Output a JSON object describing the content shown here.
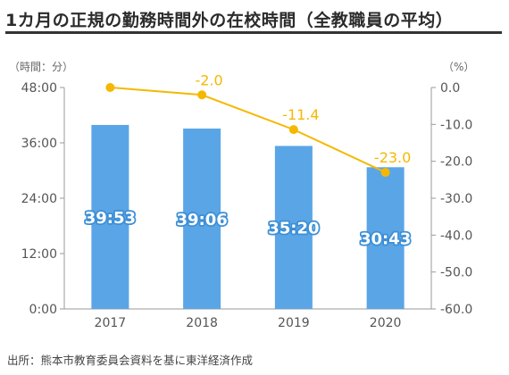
{
  "title": "1カ月の正規の勤務時間外の在校時間（全教職員の平均）",
  "source": "出所：熊本市教育委員会資料を基に東洋経済作成",
  "chart_data": {
    "type": "bar",
    "categories": [
      "2017",
      "2018",
      "2019",
      "2020"
    ],
    "left_axis": {
      "unit_label": "（時間：分）",
      "ticks": [
        "0:00",
        "12:00",
        "24:00",
        "36:00",
        "48:00"
      ],
      "range_minutes": [
        0,
        2880
      ]
    },
    "right_axis": {
      "unit_label": "（%）",
      "ticks": [
        "0.0",
        "-10.0",
        "-20.0",
        "-30.0",
        "-40.0",
        "-50.0",
        "-60.0"
      ],
      "range": [
        -60,
        0
      ]
    },
    "series": [
      {
        "type": "bar",
        "axis": "left",
        "values_minutes": [
          2393,
          2346,
          2120,
          1843
        ],
        "labels": [
          "39:53",
          "39:06",
          "35:20",
          "30:43"
        ],
        "color": "#5aa5e6"
      },
      {
        "type": "line",
        "axis": "right",
        "values": [
          0.0,
          -2.0,
          -11.4,
          -23.0
        ],
        "labels": [
          "",
          "-2.0",
          "-11.4",
          "-23.0"
        ],
        "color": "#f5b800"
      }
    ],
    "grid": false
  }
}
